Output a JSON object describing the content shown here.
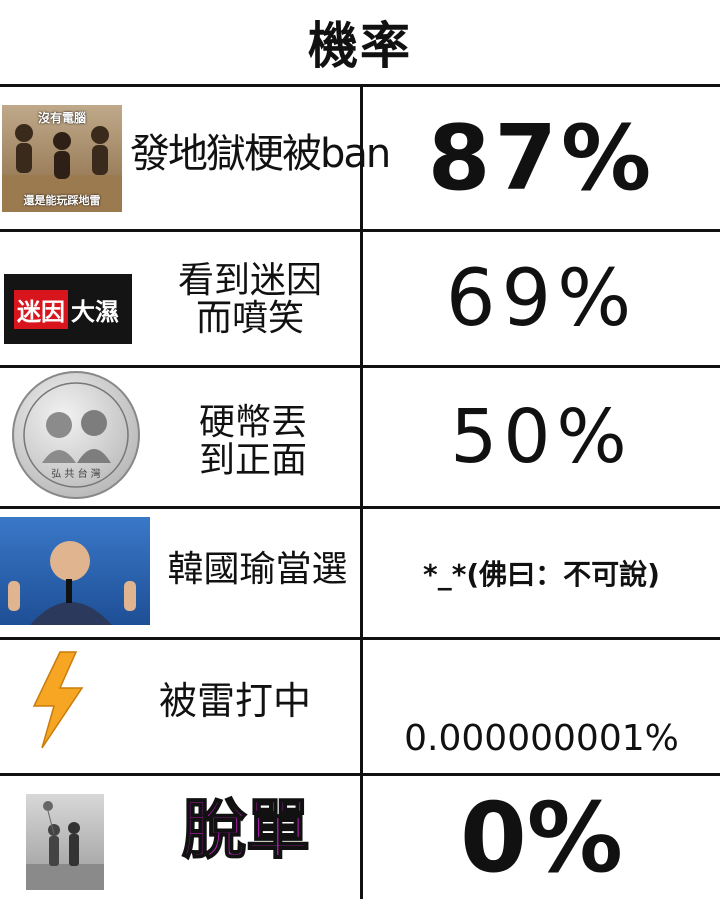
{
  "title": "機率",
  "rows": [
    {
      "label": "發地獄梗被ban",
      "value": "87%",
      "thumb": {
        "top_caption": "沒有電腦",
        "bottom_caption": "還是能玩踩地雷"
      }
    },
    {
      "label_line1": "看到迷因",
      "label_line2": "而噴笑",
      "value": "69%",
      "thumb": {
        "logo_red": "迷因",
        "logo_dark": "大濕"
      }
    },
    {
      "label_line1": "硬幣丟",
      "label_line2": "到正面",
      "value": "50%",
      "thumb": {
        "coin_bottom": "弘 共 台 灣"
      }
    },
    {
      "label": "韓國瑜當選",
      "value": "*_*(佛曰：不可說)"
    },
    {
      "label": "被雷打中",
      "value": "0.000000001%"
    },
    {
      "label": "脫單",
      "value": "0%"
    }
  ],
  "colors": {
    "logo_red": "#d8141d",
    "magenta": "#e11ee0",
    "bolt": "#f6a623"
  }
}
